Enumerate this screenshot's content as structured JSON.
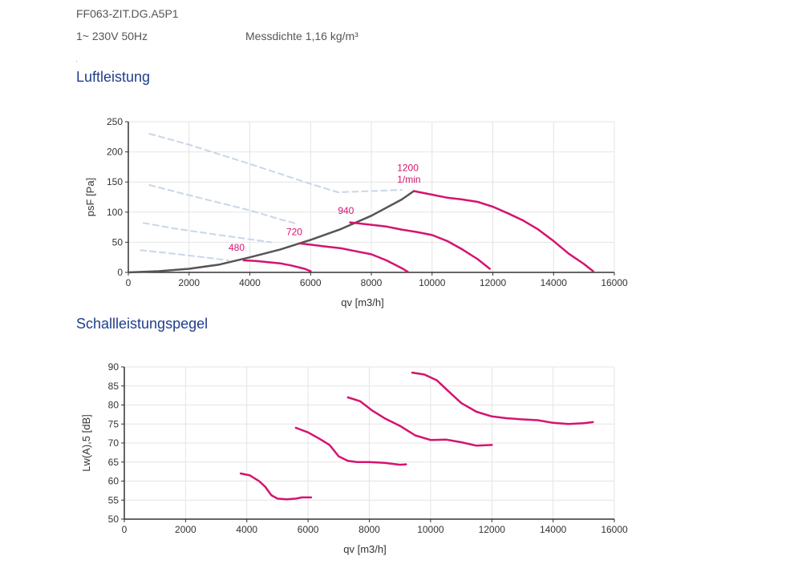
{
  "header": {
    "model": "FF063-ZIT.DG.A5P1",
    "supply": "1~ 230V 50Hz",
    "density": "Messdichte 1,16 kg/m³"
  },
  "sections": {
    "air_title": "Luftleistung",
    "sound_title": "Schallleistungspegel"
  },
  "colors": {
    "curve": "#d4146f",
    "system_line": "#555555",
    "dashed": "#c9d6e6",
    "grid": "#e4e4e4",
    "section_title": "#1f3e8a"
  },
  "chart_data": [
    {
      "type": "line",
      "title": "Luftleistung",
      "xlabel": "qv [m3/h]",
      "ylabel": "psF [Pa]",
      "xlim": [
        0,
        16000
      ],
      "ylim": [
        0,
        250
      ],
      "xticks": [
        0,
        2000,
        4000,
        6000,
        8000,
        10000,
        12000,
        14000,
        16000
      ],
      "yticks": [
        0,
        50,
        100,
        150,
        200,
        250
      ],
      "grid": true,
      "series": [
        {
          "name": "480",
          "style": "solid",
          "x": [
            3800,
            4200,
            4600,
            5000,
            5400,
            5800,
            6000
          ],
          "y": [
            20,
            19,
            17,
            15,
            11,
            6,
            2
          ]
        },
        {
          "name": "720",
          "style": "solid",
          "x": [
            5650,
            6000,
            6500,
            7000,
            7500,
            8000,
            8500,
            9000,
            9200
          ],
          "y": [
            48,
            46,
            43,
            40,
            35,
            30,
            20,
            7,
            1
          ]
        },
        {
          "name": "940",
          "style": "solid",
          "x": [
            7300,
            8000,
            8500,
            9000,
            9500,
            10000,
            10500,
            11000,
            11500,
            11900
          ],
          "y": [
            83,
            79,
            76,
            71,
            67,
            62,
            52,
            38,
            22,
            6
          ]
        },
        {
          "name": "1200",
          "style": "solid",
          "x": [
            9400,
            10000,
            10500,
            11000,
            11500,
            12000,
            12500,
            13000,
            13500,
            14000,
            14500,
            15000,
            15300
          ],
          "y": [
            135,
            129,
            124,
            121,
            117,
            109,
            98,
            86,
            71,
            52,
            31,
            14,
            2
          ]
        },
        {
          "name": "system",
          "style": "system",
          "x": [
            0,
            1000,
            2000,
            3000,
            4000,
            5000,
            6000,
            7000,
            8000,
            9000,
            9400
          ],
          "y": [
            0,
            2,
            6,
            13,
            25,
            38,
            54,
            72,
            94,
            121,
            135
          ]
        },
        {
          "name": "dashed-1",
          "style": "dashed",
          "x": [
            700,
            2000,
            4000,
            6000,
            6900,
            8000,
            9000
          ],
          "y": [
            230,
            212,
            180,
            147,
            133,
            135,
            137
          ]
        },
        {
          "name": "dashed-2",
          "style": "dashed",
          "x": [
            700,
            2000,
            4000,
            5000,
            5600
          ],
          "y": [
            145,
            128,
            103,
            88,
            80
          ]
        },
        {
          "name": "dashed-3",
          "style": "dashed",
          "x": [
            500,
            1500,
            3000,
            4000,
            4700
          ],
          "y": [
            82,
            73,
            62,
            55,
            50
          ]
        },
        {
          "name": "dashed-4",
          "style": "dashed",
          "x": [
            400,
            1500,
            2500,
            3300
          ],
          "y": [
            37,
            31,
            25,
            20
          ]
        }
      ],
      "annotations": [
        {
          "text": "480",
          "x": 3300,
          "y": 36
        },
        {
          "text": "720",
          "x": 5200,
          "y": 62
        },
        {
          "text": "940",
          "x": 6900,
          "y": 97
        },
        {
          "text": "1200",
          "x": 8850,
          "y": 168
        },
        {
          "text": "1/min",
          "x": 8850,
          "y": 149
        }
      ]
    },
    {
      "type": "line",
      "title": "Schallleistungspegel",
      "xlabel": "qv [m3/h]",
      "ylabel": "Lw(A),5 [dB]",
      "xlim": [
        0,
        16000
      ],
      "ylim": [
        50,
        90
      ],
      "xticks": [
        0,
        2000,
        4000,
        6000,
        8000,
        10000,
        12000,
        14000,
        16000
      ],
      "yticks": [
        50,
        55,
        60,
        65,
        70,
        75,
        80,
        85,
        90
      ],
      "grid": true,
      "series": [
        {
          "name": "480",
          "style": "solid",
          "x": [
            3800,
            4100,
            4400,
            4600,
            4800,
            5000,
            5300,
            5600,
            5800,
            6100
          ],
          "y": [
            62,
            61.5,
            60,
            58.5,
            56.3,
            55.4,
            55.2,
            55.4,
            55.7,
            55.7
          ]
        },
        {
          "name": "720",
          "style": "solid",
          "x": [
            5600,
            6000,
            6400,
            6700,
            7000,
            7300,
            7600,
            8000,
            8500,
            9000,
            9200
          ],
          "y": [
            74,
            72.8,
            71,
            69.5,
            66.5,
            65.3,
            65,
            65,
            64.8,
            64.3,
            64.4
          ]
        },
        {
          "name": "940",
          "style": "solid",
          "x": [
            7300,
            7700,
            8100,
            8500,
            9000,
            9500,
            10000,
            10500,
            11000,
            11500,
            12000
          ],
          "y": [
            82,
            81,
            78.5,
            76.5,
            74.5,
            72,
            70.8,
            70.9,
            70.2,
            69.3,
            69.5
          ]
        },
        {
          "name": "1200",
          "style": "solid",
          "x": [
            9400,
            9800,
            10200,
            10600,
            11000,
            11500,
            12000,
            12500,
            13000,
            13500,
            14000,
            14500,
            15000,
            15300
          ],
          "y": [
            88.5,
            88,
            86.5,
            83.5,
            80.5,
            78.2,
            77,
            76.5,
            76.2,
            76,
            75.3,
            75,
            75.2,
            75.5
          ]
        }
      ],
      "annotations": []
    }
  ]
}
